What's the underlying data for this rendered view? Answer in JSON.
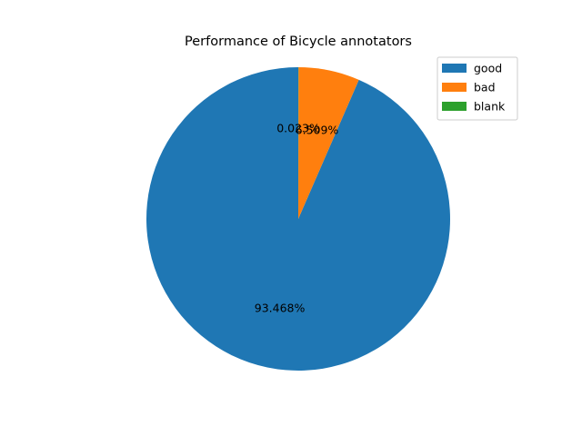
{
  "chart_data": {
    "type": "pie",
    "title": "Performance of Bicycle annotators",
    "categories": [
      "good",
      "bad",
      "blank"
    ],
    "values": [
      93.468,
      6.509,
      0.023
    ],
    "labels": [
      "93.468%",
      "6.509%",
      "0.023%"
    ],
    "colors": [
      "#1f77b4",
      "#ff7f0e",
      "#2ca02c"
    ],
    "start_angle": 90,
    "direction": "counterclockwise",
    "legend": {
      "placement": "top-right",
      "entries": [
        "good",
        "bad",
        "blank"
      ]
    },
    "grid": false
  }
}
